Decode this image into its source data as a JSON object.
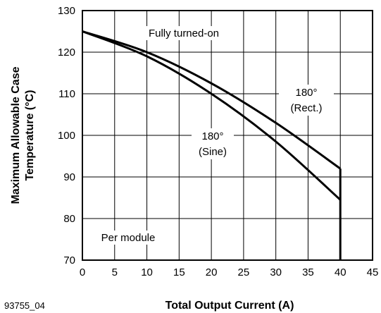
{
  "figure_code": "93755_04",
  "chart_data": {
    "type": "line",
    "xlabel": "Total Output Current (A)",
    "ylabel_lines": [
      "Maximum Allowable Case",
      "Temperature (°C)"
    ],
    "xlim": [
      0,
      45
    ],
    "ylim": [
      70,
      130
    ],
    "x_ticks": [
      0,
      5,
      10,
      15,
      20,
      25,
      30,
      35,
      40,
      45
    ],
    "y_ticks": [
      70,
      80,
      90,
      100,
      110,
      120,
      130
    ],
    "grid": true,
    "series": [
      {
        "name": "Fully turned-on",
        "points": [
          [
            0,
            125
          ],
          [
            10,
            120
          ],
          [
            20,
            112.5
          ],
          [
            30,
            103
          ],
          [
            40,
            92
          ]
        ]
      },
      {
        "name": "180° (Sine)",
        "points": [
          [
            0,
            125
          ],
          [
            10,
            119
          ],
          [
            20,
            110
          ],
          [
            30,
            98.5
          ],
          [
            40,
            84.5
          ]
        ]
      },
      {
        "name": "180° (Rect.)",
        "points": [
          [
            0,
            125
          ],
          [
            10,
            120
          ],
          [
            20,
            112.5
          ],
          [
            30,
            103
          ],
          [
            40,
            92
          ]
        ]
      }
    ],
    "vertical_limit": {
      "x": 40,
      "from": 70,
      "to": 92
    },
    "annotations": {
      "fully_on": "Fully turned-on",
      "rect_line1": "180°",
      "rect_line2": "(Rect.)",
      "sine_line1": "180°",
      "sine_line2": "(Sine)",
      "per_module": "Per module"
    }
  }
}
